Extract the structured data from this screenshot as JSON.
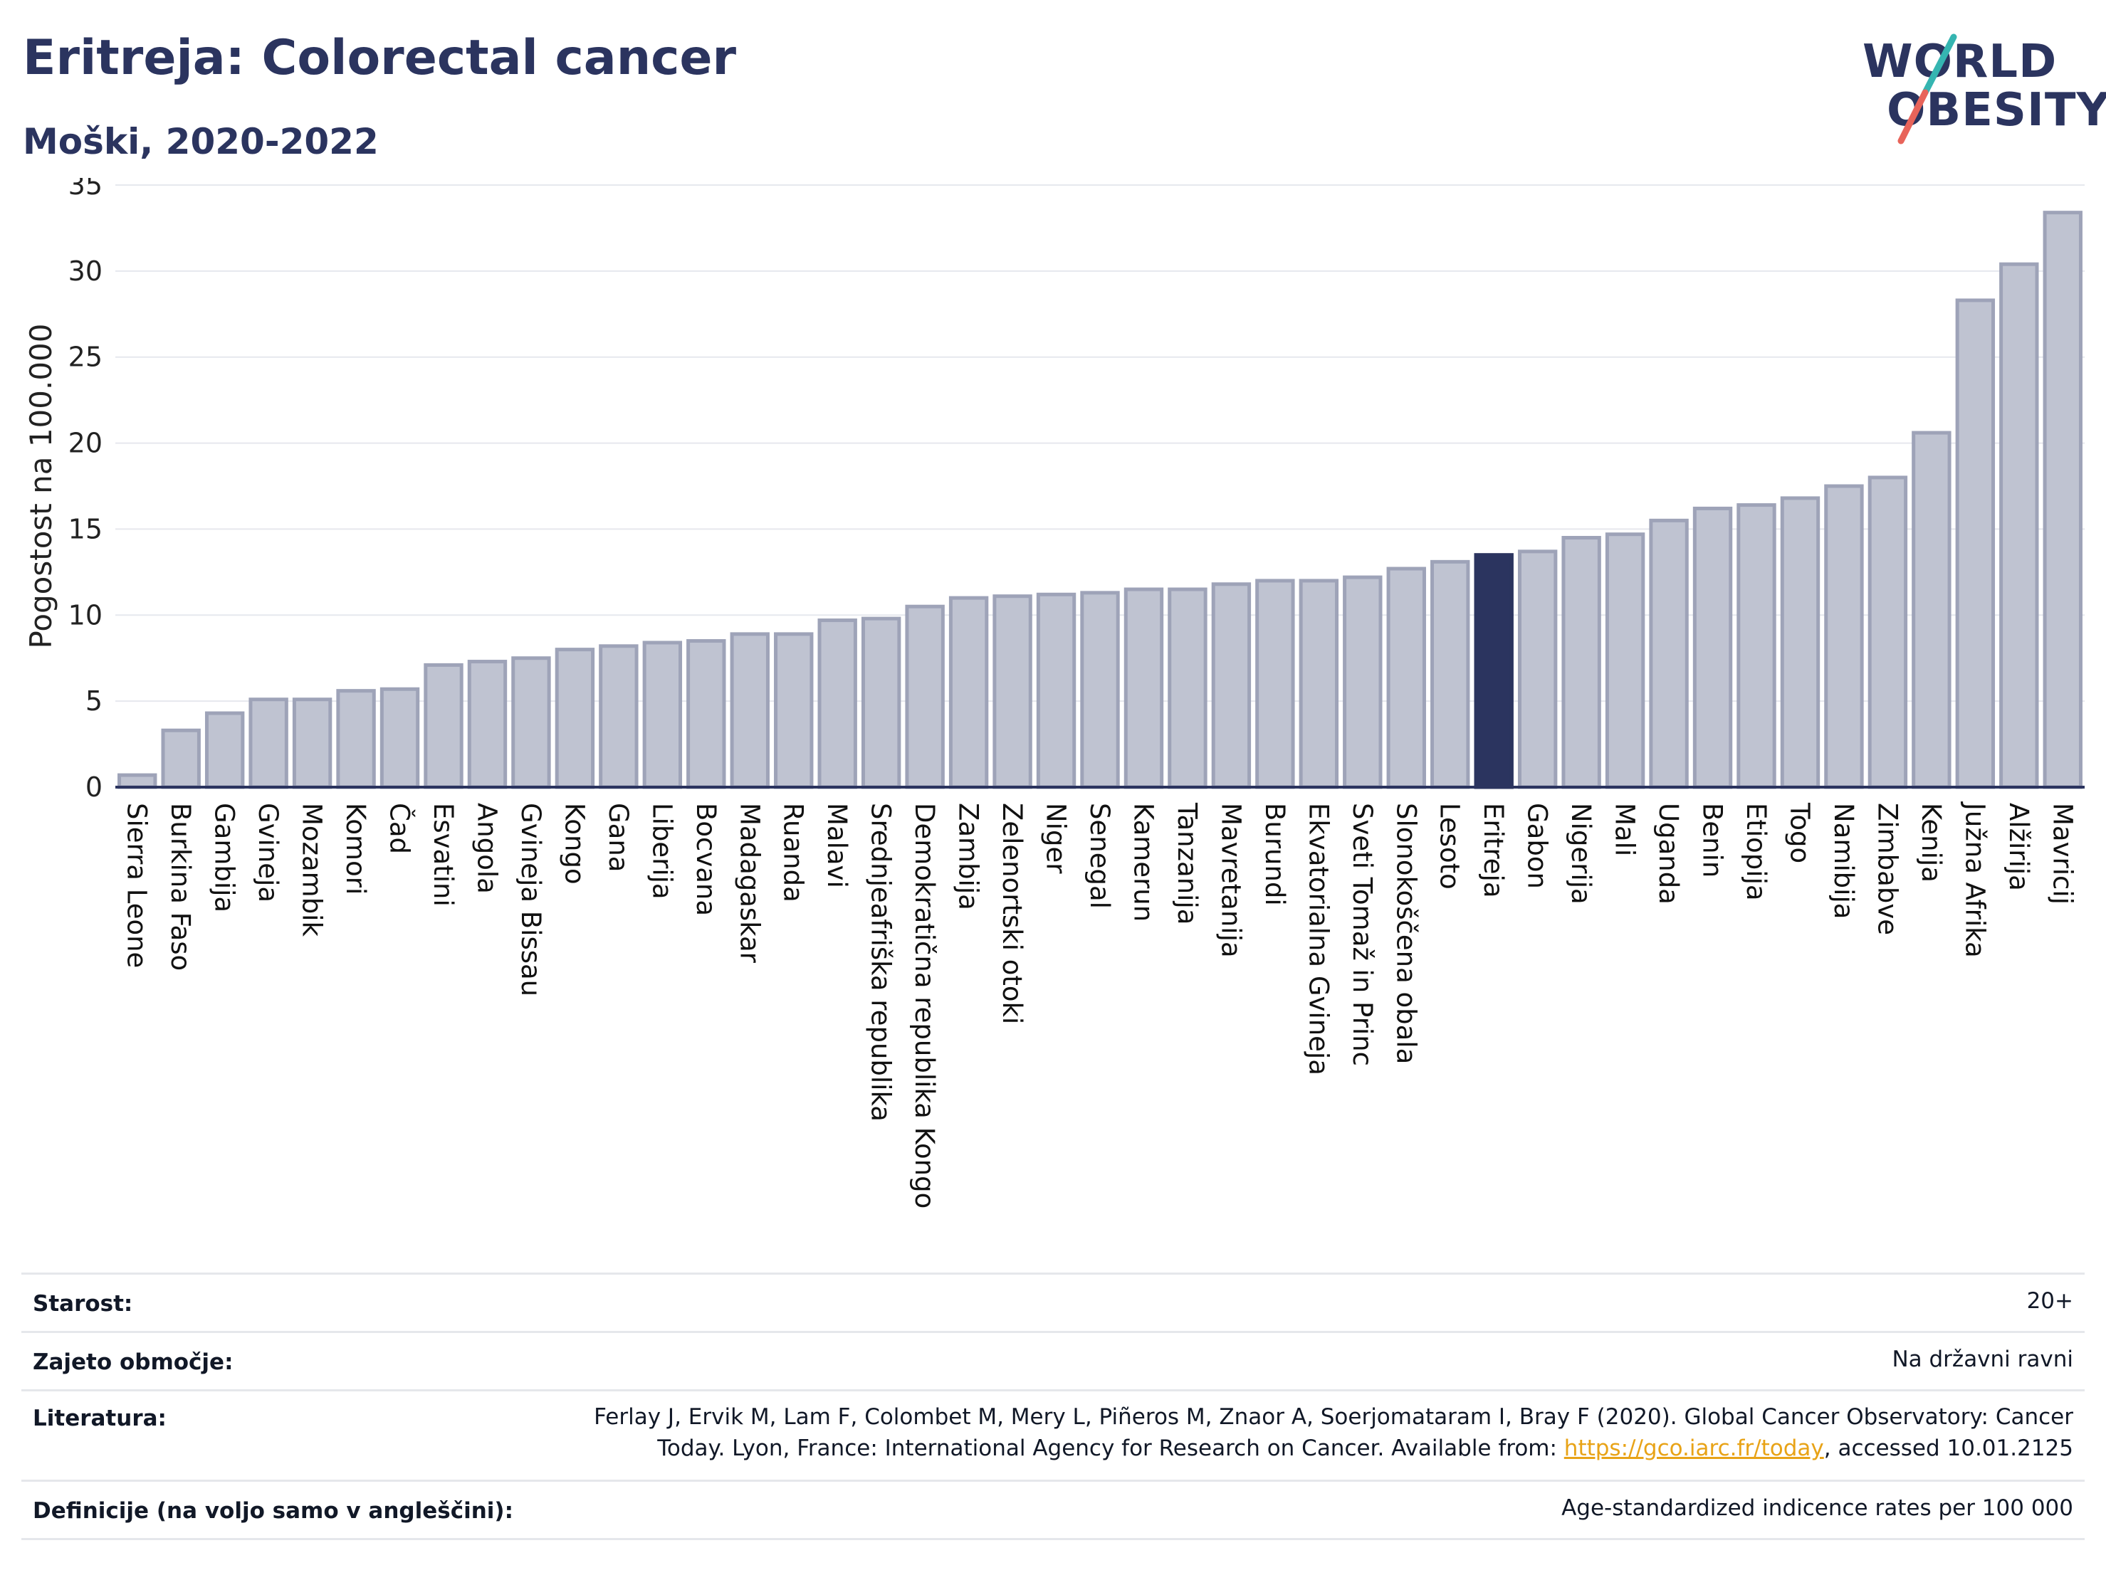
{
  "header": {
    "title": "Eritreja: Colorectal cancer",
    "subtitle": "Moški, 2020-2022"
  },
  "logo": {
    "line1": "WORLD",
    "line2": "OBESITY",
    "slash_colors": [
      "#35b5b1",
      "#e8645a"
    ]
  },
  "colors": {
    "bar_default": "#bfc3d1",
    "bar_default_edge": "#9ea3b8",
    "bar_highlight": "#2b345f",
    "axis": "#2b345f",
    "grid": "#e6e8ee"
  },
  "chart_data": {
    "type": "bar",
    "ylabel": "Pogostost na 100.000",
    "ylim": [
      0,
      35
    ],
    "yticks": [
      0,
      5,
      10,
      15,
      20,
      25,
      30,
      35
    ],
    "grid": true,
    "highlight": "Eritreja",
    "categories": [
      "Sierra Leone",
      "Burkina Faso",
      "Gambija",
      "Gvineja",
      "Mozambik",
      "Komori",
      "Čad",
      "Esvatini",
      "Angola",
      "Gvineja Bissau",
      "Kongo",
      "Gana",
      "Liberija",
      "Bocvana",
      "Madagaskar",
      "Ruanda",
      "Malavi",
      "Srednjeafriška republika",
      "Demokratična republika Kongo",
      "Zambija",
      "Zelenortski otoki",
      "Niger",
      "Senegal",
      "Kamerun",
      "Tanzanija",
      "Mavretanija",
      "Burundi",
      "Ekvatorialna Gvineja",
      "Sveti Tomaž in Princ",
      "Slonokoščena obala",
      "Lesoto",
      "Eritreja",
      "Gabon",
      "Nigerija",
      "Mali",
      "Uganda",
      "Benin",
      "Etiopija",
      "Togo",
      "Namibija",
      "Zimbabve",
      "Kenija",
      "Južna Afrika",
      "Alžirija",
      "Mavricij"
    ],
    "values": [
      0.7,
      3.3,
      4.3,
      5.1,
      5.1,
      5.6,
      5.7,
      7.1,
      7.3,
      7.5,
      8.0,
      8.2,
      8.4,
      8.5,
      8.9,
      8.9,
      9.7,
      9.8,
      10.5,
      11.0,
      11.1,
      11.2,
      11.3,
      11.5,
      11.5,
      11.8,
      12.0,
      12.0,
      12.2,
      12.7,
      13.1,
      13.5,
      13.7,
      14.5,
      14.7,
      15.5,
      16.2,
      16.4,
      16.8,
      17.5,
      18.0,
      20.6,
      28.3,
      30.4,
      33.4
    ]
  },
  "meta": {
    "age_label": "Starost:",
    "age_value": "20+",
    "area_label": "Zajeto območje:",
    "area_value": "Na državni ravni",
    "lit_label": "Literatura:",
    "lit_line1": "Ferlay J, Ervik M, Lam F, Colombet M, Mery L, Piñeros M, Znaor A, Soerjomataram I, Bray F (2020). Global Cancer Observatory: Cancer",
    "lit_line2_pre": "Today. Lyon, France: International Agency for Research on Cancer. Available from: ",
    "lit_link": "https://gco.iarc.fr/today",
    "lit_line2_post": ", accessed 10.01.2125",
    "def_label": "Definicije (na voljo samo v angleščini):",
    "def_value": "Age-standardized indicence rates per 100 000"
  }
}
